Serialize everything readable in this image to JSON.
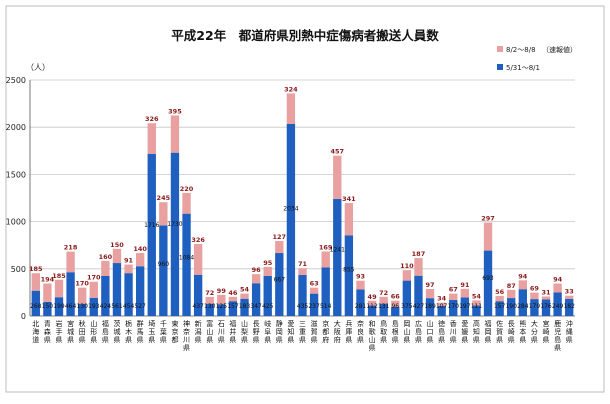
{
  "chart_data": {
    "type": "bar",
    "stacked": true,
    "title": "平成22年　都道府県別熱中症傷病者搬送人員数",
    "ylabel": "（人）",
    "ylim": [
      0,
      2500
    ],
    "yticks": [
      0,
      500,
      1000,
      1500,
      2000,
      2500
    ],
    "grid": true,
    "legend_note": "（速報値）",
    "legend_position": "top-right",
    "categories": [
      "北海道",
      "青森県",
      "岩手県",
      "宮城県",
      "秋田県",
      "山形県",
      "福島県",
      "茨城県",
      "栃木県",
      "群馬県",
      "埼玉県",
      "千葉県",
      "東京都",
      "神奈川県",
      "新潟県",
      "富山県",
      "石川県",
      "福井県",
      "山梨県",
      "長野県",
      "岐阜県",
      "静岡県",
      "愛知県",
      "三重県",
      "滋賀県",
      "京都府",
      "大阪府",
      "兵庫県",
      "奈良県",
      "和歌山県",
      "鳥取県",
      "島根県",
      "岡山県",
      "広島県",
      "山口県",
      "徳島県",
      "香川県",
      "愛媛県",
      "高知県",
      "福岡県",
      "佐賀県",
      "長崎県",
      "熊本県",
      "大分県",
      "宮崎県",
      "鹿児島県",
      "沖縄県"
    ],
    "series": [
      {
        "name": "5/31～8/1",
        "color": "#1f5fbf",
        "values": [
          268,
          150,
          199,
          464,
          130,
          193,
          424,
          561,
          454,
          527,
          1716,
          960,
          1730,
          1084,
          437,
          130,
          125,
          157,
          183,
          347,
          425,
          667,
          2034,
          435,
          237,
          514,
          1241,
          855,
          281,
          112,
          131,
          96,
          375,
          427,
          189,
          107,
          170,
          197,
          111,
          693,
          157,
          190,
          284,
          179,
          176,
          249,
          182
        ]
      },
      {
        "name": "8/2～8/8",
        "color": "#e8a0a0",
        "values": [
          185,
          194,
          185,
          218,
          170,
          170,
          160,
          150,
          91,
          140,
          326,
          245,
          395,
          220,
          326,
          72,
          99,
          46,
          54,
          96,
          95,
          127,
          324,
          71,
          63,
          169,
          457,
          341,
          93,
          49,
          72,
          66,
          110,
          187,
          97,
          34,
          67,
          91,
          54,
          297,
          56,
          87,
          94,
          69,
          31,
          94,
          33
        ]
      }
    ],
    "top_label_values": [
      185,
      194,
      185,
      218,
      170,
      170,
      160,
      150,
      91,
      140,
      326,
      245,
      395,
      220,
      326,
      72,
      99,
      46,
      54,
      96,
      95,
      127,
      324,
      71,
      63,
      169,
      457,
      341,
      93,
      49,
      72,
      66,
      110,
      187,
      97,
      34,
      67,
      91,
      54,
      297,
      56,
      87,
      94,
      69,
      31,
      94,
      33
    ],
    "bottom_label_values": [
      268,
      150,
      199,
      464,
      130,
      193,
      424,
      561,
      454,
      527,
      1716,
      960,
      1730,
      1084,
      437,
      130,
      125,
      157,
      183,
      347,
      425,
      667,
      2034,
      435,
      237,
      514,
      1241,
      855,
      281,
      112,
      131,
      96,
      375,
      427,
      189,
      107,
      170,
      197,
      111,
      693,
      157,
      190,
      284,
      179,
      176,
      249,
      182
    ]
  }
}
